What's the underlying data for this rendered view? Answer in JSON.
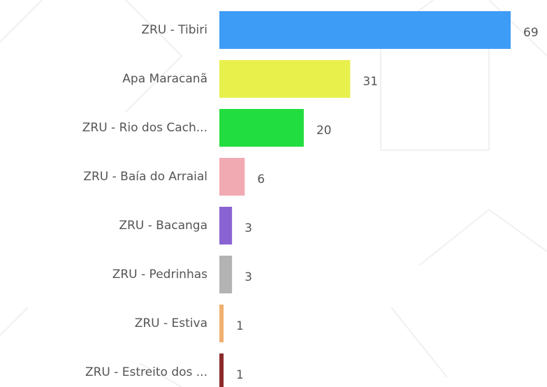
{
  "chart_data": {
    "type": "bar",
    "orientation": "horizontal",
    "categories": [
      "ZRU - Tibiri",
      "Apa Maracanã",
      "ZRU - Rio dos Cach...",
      "ZRU - Baía do Arraial",
      "ZRU - Bacanga",
      "ZRU - Pedrinhas",
      "ZRU - Estiva",
      "ZRU - Estreito dos ..."
    ],
    "values": [
      69,
      31,
      20,
      6,
      3,
      3,
      1,
      1
    ],
    "colors": [
      "#3d9cf5",
      "#e8f04c",
      "#22dd3f",
      "#f2aab2",
      "#8a63d2",
      "#b3b3b3",
      "#f0b070",
      "#8b2a2a"
    ]
  }
}
